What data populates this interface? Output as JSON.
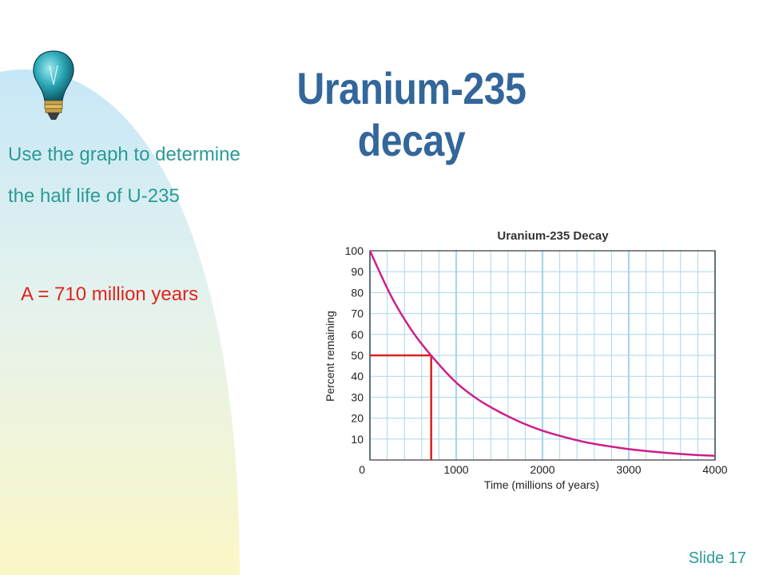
{
  "slide": {
    "title": "Uranium-235 decay",
    "prompt_line1": "Use the graph to determine",
    "prompt_line2": "the half life of U-235",
    "answer": "A = 710 million years",
    "slide_number": "Slide 17"
  },
  "icons": {
    "lightbulb": "lightbulb-icon"
  },
  "colors": {
    "title": "#33669b",
    "prompt": "#2a9b95",
    "answer": "#e0231b",
    "curve": "#cc1f8a",
    "half_life_marker": "#dd1f1f",
    "grid": "#a9d6ec",
    "background_arc_top": "#c6e7f7",
    "background_arc_bottom": "#fbf6c6"
  },
  "chart_data": {
    "type": "line",
    "title": "Uranium-235 Decay",
    "xlabel": "Time (millions of years)",
    "ylabel": "Percent remaining",
    "xlim": [
      0,
      4000
    ],
    "ylim": [
      0,
      100
    ],
    "x_ticks": [
      0,
      1000,
      2000,
      3000,
      4000
    ],
    "y_ticks": [
      10,
      20,
      30,
      40,
      50,
      60,
      70,
      80,
      90,
      100
    ],
    "grid": true,
    "series": [
      {
        "x": [
          0,
          250,
          500,
          750,
          1000,
          1250,
          1500,
          1750,
          2000,
          2250,
          2500,
          2750,
          3000,
          3250,
          3500,
          3750,
          4000
        ],
        "values": [
          100,
          78,
          61,
          48,
          37,
          29,
          23,
          18,
          14,
          11,
          8.5,
          6.7,
          5.2,
          4.1,
          3.2,
          2.5,
          2
        ]
      }
    ],
    "annotations": [
      {
        "type": "half-life-marker",
        "x": 710,
        "y": 50
      }
    ]
  }
}
